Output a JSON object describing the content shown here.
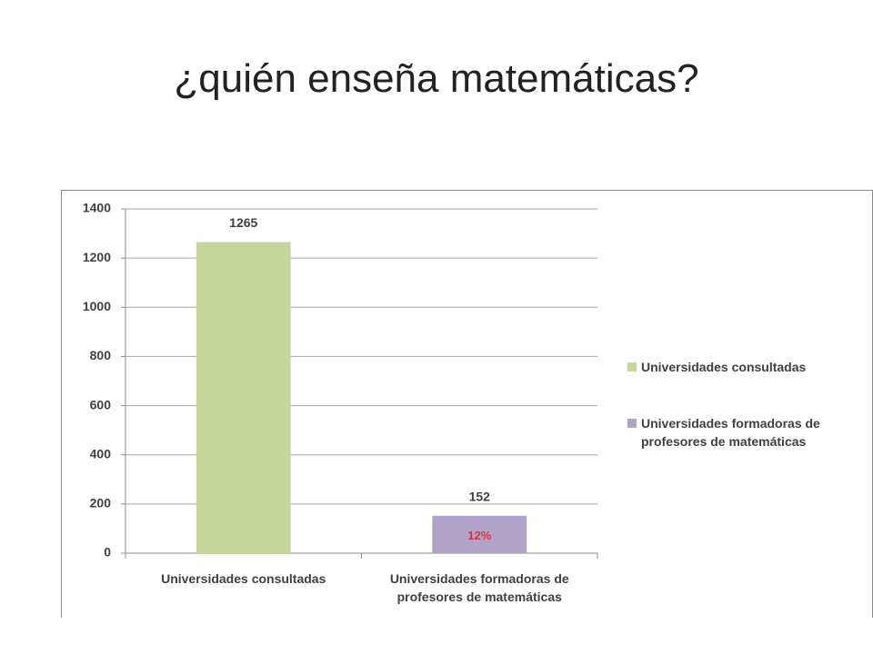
{
  "title": "¿quién enseña matemáticas?",
  "chart_data": {
    "type": "bar",
    "categories": [
      "Universidades consultadas",
      "Universidades formadoras de profesores de matemáticas"
    ],
    "values": [
      1265,
      152
    ],
    "colors": [
      "#c3d69b",
      "#b3a2c7"
    ],
    "ylim": [
      0,
      1400
    ],
    "yticks": [
      0,
      200,
      400,
      600,
      800,
      1000,
      1200,
      1400
    ],
    "grid": true,
    "legend": "right",
    "annotation": {
      "text": "12%",
      "index": 1,
      "color": "#e0303a"
    }
  }
}
